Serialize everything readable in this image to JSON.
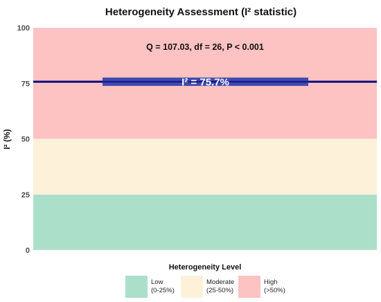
{
  "chart_data": {
    "type": "bar",
    "title": "Heterogeneity Assessment (I² statistic)",
    "ylabel": "I² (%)",
    "xlabel": "",
    "ylim": [
      0,
      100
    ],
    "yticks": [
      0,
      25,
      50,
      75,
      100
    ],
    "grid": true,
    "bands": [
      {
        "name": "Low",
        "range_label": "(0-25%)",
        "from": 0,
        "to": 25,
        "color": "#acdfca"
      },
      {
        "name": "Moderate",
        "range_label": "(25-50%)",
        "from": 25,
        "to": 50,
        "color": "#fdf2d9"
      },
      {
        "name": "High",
        "range_label": "(>50%)",
        "from": 50,
        "to": 100,
        "color": "#fdc2c2"
      }
    ],
    "i2_value": 75.7,
    "i2_label": "I² = 75.7%",
    "line_color": "#0a0a7a",
    "label_box_color": "#2a3aa8",
    "annotation": "Q = 107.03, df = 26, P < 0.001",
    "legend": {
      "title": "Heterogeneity Level",
      "placement": "bottom"
    }
  }
}
